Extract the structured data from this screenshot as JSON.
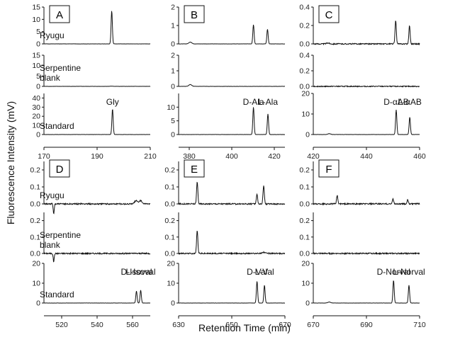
{
  "figure": {
    "ylabel": "Fluorescence Intensity (mV)",
    "xlabel": "Retention Time (min)"
  },
  "chart_data": [
    {
      "panel": "A",
      "type": "line",
      "xlim": [
        170,
        210
      ],
      "xticks": [
        "170",
        "190",
        "210"
      ],
      "rows": [
        {
          "label": "Ryugu",
          "ylim": [
            0,
            15
          ],
          "yticks": [
            "0",
            "5",
            "10",
            "15"
          ],
          "peaks": [
            {
              "x": 195.5,
              "y": 13.5
            }
          ]
        },
        {
          "label": "Serpentine blank",
          "ylim": [
            0,
            15
          ],
          "yticks": [
            "0",
            "5",
            "10",
            "15"
          ],
          "peaks": [
            {
              "x": 195.5,
              "y": 0.1
            }
          ]
        },
        {
          "label": "Standard",
          "ylim": [
            0,
            45
          ],
          "yticks": [
            "0",
            "10",
            "20",
            "30",
            "40"
          ],
          "peaks": [
            {
              "x": 195.8,
              "y": 28
            }
          ],
          "annotations": [
            {
              "text": "Gly",
              "x": 195.8
            }
          ]
        }
      ]
    },
    {
      "panel": "B",
      "type": "line",
      "xlim": [
        375,
        425
      ],
      "xticks": [
        "380",
        "400",
        "420"
      ],
      "rows": [
        {
          "label": "",
          "ylim": [
            0,
            2
          ],
          "yticks": [
            "0",
            "1",
            "2"
          ],
          "peaks": [
            {
              "x": 380.5,
              "y": 0.1
            },
            {
              "x": 410.2,
              "y": 1.05
            },
            {
              "x": 416.8,
              "y": 0.8
            }
          ]
        },
        {
          "label": "",
          "ylim": [
            0,
            2
          ],
          "yticks": [
            "0",
            "1",
            "2"
          ],
          "peaks": [
            {
              "x": 380.5,
              "y": 0.12
            }
          ]
        },
        {
          "label": "",
          "ylim": [
            0,
            15
          ],
          "yticks": [
            "0",
            "5",
            "10"
          ],
          "peaks": [
            {
              "x": 410.2,
              "y": 10
            },
            {
              "x": 417.0,
              "y": 7.5
            }
          ],
          "annotations": [
            {
              "text": "D-Ala",
              "x": 410.2
            },
            {
              "text": "L-Ala",
              "x": 417.0
            }
          ]
        }
      ]
    },
    {
      "panel": "C",
      "type": "line",
      "xlim": [
        420,
        460
      ],
      "xticks": [
        "420",
        "440",
        "460"
      ],
      "rows": [
        {
          "label": "",
          "ylim": [
            0,
            0.4
          ],
          "yticks": [
            "0.0",
            "0.2",
            "0.4"
          ],
          "peaks": [
            {
              "x": 425.5,
              "y": 0.01
            },
            {
              "x": 451.0,
              "y": 0.26
            },
            {
              "x": 456.2,
              "y": 0.2
            }
          ]
        },
        {
          "label": "",
          "ylim": [
            0,
            0.4
          ],
          "yticks": [
            "0.0",
            "0.2",
            "0.4"
          ],
          "peaks": []
        },
        {
          "label": "",
          "ylim": [
            0,
            20
          ],
          "yticks": [
            "0",
            "10",
            "20"
          ],
          "peaks": [
            {
              "x": 426.0,
              "y": 0.4
            },
            {
              "x": 451.2,
              "y": 12
            },
            {
              "x": 456.3,
              "y": 8.5
            }
          ],
          "annotations": [
            {
              "text": "D-αAB",
              "x": 451.2
            },
            {
              "text": "L-αAB",
              "x": 456.3
            }
          ]
        }
      ]
    },
    {
      "panel": "D",
      "type": "line",
      "xlim": [
        510,
        570
      ],
      "xticks": [
        "520",
        "540",
        "560"
      ],
      "rows": [
        {
          "label": "Ryugu",
          "ylim": [
            0,
            0.25
          ],
          "yticks": [
            "0.0",
            "0.1",
            "0.2"
          ],
          "peaks": [
            {
              "x": 562.0,
              "y": 0.02
            },
            {
              "x": 564.5,
              "y": 0.02
            }
          ],
          "dip": {
            "x": 515.5,
            "y": -0.06
          }
        },
        {
          "label": "Serpentine blank",
          "ylim": [
            0,
            0.25
          ],
          "yticks": [
            "0.0",
            "0.1",
            "0.2"
          ],
          "peaks": [],
          "dip": {
            "x": 515.5,
            "y": -0.05
          }
        },
        {
          "label": "Standard",
          "ylim": [
            0,
            20
          ],
          "yticks": [
            "0",
            "10",
            "20"
          ],
          "peaks": [
            {
              "x": 562.2,
              "y": 6
            },
            {
              "x": 564.6,
              "y": 6.5
            }
          ],
          "annotations": [
            {
              "text": "D-Isoval",
              "x": 562.2
            },
            {
              "text": "L-Isoval",
              "x": 564.6
            }
          ]
        }
      ]
    },
    {
      "panel": "E",
      "type": "line",
      "xlim": [
        630,
        670
      ],
      "xticks": [
        "630",
        "650",
        "670"
      ],
      "rows": [
        {
          "label": "",
          "ylim": [
            0,
            0.25
          ],
          "yticks": [
            "0.0",
            "0.1",
            "0.2"
          ],
          "peaks": [
            {
              "x": 637.0,
              "y": 0.13
            },
            {
              "x": 659.5,
              "y": 0.055
            },
            {
              "x": 662.0,
              "y": 0.11
            }
          ]
        },
        {
          "label": "",
          "ylim": [
            0,
            0.25
          ],
          "yticks": [
            "0.0",
            "0.1",
            "0.2"
          ],
          "peaks": [
            {
              "x": 637.0,
              "y": 0.14
            },
            {
              "x": 662.0,
              "y": 0.008
            }
          ]
        },
        {
          "label": "",
          "ylim": [
            0,
            20
          ],
          "yticks": [
            "0",
            "10",
            "20"
          ],
          "peaks": [
            {
              "x": 659.5,
              "y": 11
            },
            {
              "x": 662.3,
              "y": 9
            }
          ],
          "annotations": [
            {
              "text": "D-Val",
              "x": 659.5
            },
            {
              "text": "L-Val",
              "x": 662.3
            }
          ]
        }
      ]
    },
    {
      "panel": "F",
      "type": "line",
      "xlim": [
        670,
        710
      ],
      "xticks": [
        "670",
        "690",
        "710"
      ],
      "rows": [
        {
          "label": "",
          "ylim": [
            0,
            0.25
          ],
          "yticks": [
            "0.0",
            "0.1",
            "0.2"
          ],
          "peaks": [
            {
              "x": 679.0,
              "y": 0.05
            },
            {
              "x": 700.0,
              "y": 0.03
            },
            {
              "x": 705.5,
              "y": 0.025
            }
          ]
        },
        {
          "label": "",
          "ylim": [
            0,
            0.25
          ],
          "yticks": [
            "0.0",
            "0.1",
            "0.2"
          ],
          "peaks": []
        },
        {
          "label": "",
          "ylim": [
            0,
            20
          ],
          "yticks": [
            "0",
            "10",
            "20"
          ],
          "peaks": [
            {
              "x": 676.0,
              "y": 0.5
            },
            {
              "x": 700.2,
              "y": 11.5
            },
            {
              "x": 706.0,
              "y": 9
            }
          ],
          "annotations": [
            {
              "text": "D-Norval",
              "x": 700.2
            },
            {
              "text": "L-Norval",
              "x": 706.0
            }
          ]
        }
      ]
    }
  ]
}
